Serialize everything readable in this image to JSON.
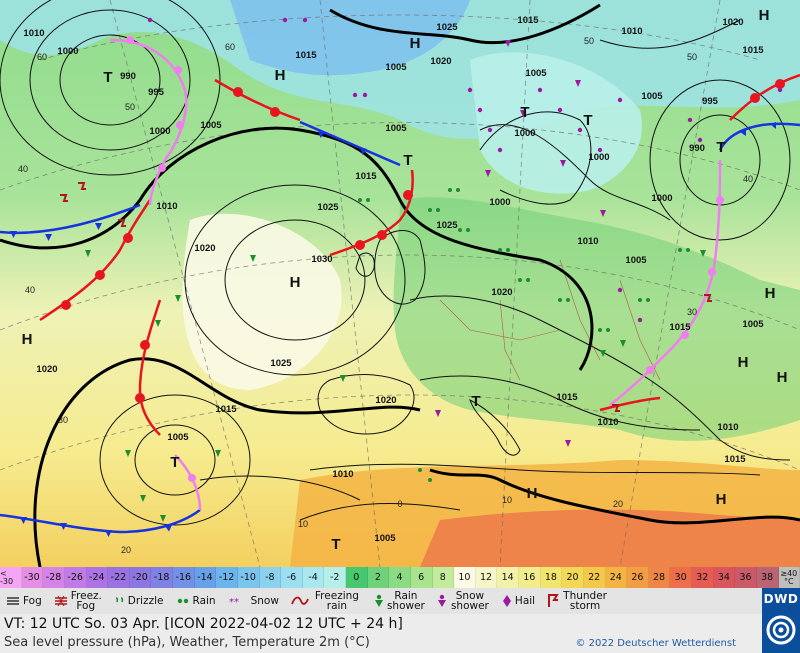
{
  "valid_time": "VT: 12 UTC So.  03 Apr. [ICON 2022-04-02  12 UTC + 24 h]",
  "description": "Sea level pressure (hPa), Weather, Temperature 2m (°C)",
  "copyright": "© 2022 Deutscher Wetterdienst",
  "logo": "DWD",
  "temperature_scale": {
    "low_end": "< -30",
    "high_end": "≥40 °C",
    "steps": [
      {
        "label": "-30",
        "color": "#e48fe4"
      },
      {
        "label": "-28",
        "color": "#d483e6"
      },
      {
        "label": "-26",
        "color": "#c07be6"
      },
      {
        "label": "-24",
        "color": "#ac73e4"
      },
      {
        "label": "-22",
        "color": "#9a72e2"
      },
      {
        "label": "-20",
        "color": "#8c76e0"
      },
      {
        "label": "-18",
        "color": "#7f82e2"
      },
      {
        "label": "-16",
        "color": "#7291e4"
      },
      {
        "label": "-14",
        "color": "#67a1e8"
      },
      {
        "label": "-12",
        "color": "#6cb4ec"
      },
      {
        "label": "-10",
        "color": "#7ac4ee"
      },
      {
        "label": "-8",
        "color": "#8ad2ee"
      },
      {
        "label": "-6",
        "color": "#9bdff0"
      },
      {
        "label": "-4",
        "color": "#a8e8ee"
      },
      {
        "label": "-2",
        "color": "#b6efe9"
      },
      {
        "label": "0",
        "color": "#47c86e"
      },
      {
        "label": "2",
        "color": "#6fd27a"
      },
      {
        "label": "4",
        "color": "#8cdb83"
      },
      {
        "label": "6",
        "color": "#a8e38e"
      },
      {
        "label": "8",
        "color": "#c3eb9b"
      },
      {
        "label": "10",
        "color": "#fafae6"
      },
      {
        "label": "12",
        "color": "#f6f6c8"
      },
      {
        "label": "14",
        "color": "#f3f2aa"
      },
      {
        "label": "16",
        "color": "#f1ec8c"
      },
      {
        "label": "18",
        "color": "#f2e56e"
      },
      {
        "label": "20",
        "color": "#f3d856"
      },
      {
        "label": "22",
        "color": "#f4c84a"
      },
      {
        "label": "24",
        "color": "#f3b444"
      },
      {
        "label": "26",
        "color": "#f29e44"
      },
      {
        "label": "28",
        "color": "#ef8646"
      },
      {
        "label": "30",
        "color": "#ec6e4b"
      },
      {
        "label": "32",
        "color": "#e45c52"
      },
      {
        "label": "34",
        "color": "#d9575c"
      },
      {
        "label": "36",
        "color": "#cb5a68"
      },
      {
        "label": "38",
        "color": "#bb6474"
      }
    ]
  },
  "legend": [
    {
      "id": "fog",
      "label": "Fog",
      "icon": "fog-icon"
    },
    {
      "id": "freezing-fog",
      "label": "Freez. Fog",
      "icon": "freezing-fog-icon"
    },
    {
      "id": "drizzle",
      "label": "Drizzle",
      "icon": "drizzle-icon"
    },
    {
      "id": "rain",
      "label": "Rain",
      "icon": "rain-icon"
    },
    {
      "id": "snow",
      "label": "Snow",
      "icon": "snow-icon"
    },
    {
      "id": "freezing-rain",
      "label": "Freezing rain",
      "icon": "freezing-rain-icon"
    },
    {
      "id": "rain-shower",
      "label": "Rain shower",
      "icon": "rain-shower-icon"
    },
    {
      "id": "snow-shower",
      "label": "Snow shower",
      "icon": "snow-shower-icon"
    },
    {
      "id": "hail",
      "label": "Hail",
      "icon": "hail-icon"
    },
    {
      "id": "thunderstorm",
      "label": "Thunder storm",
      "icon": "thunderstorm-icon"
    }
  ],
  "map": {
    "pressure_centers": [
      {
        "type": "H",
        "label": "H"
      },
      {
        "type": "H",
        "label": "H"
      },
      {
        "type": "H",
        "label": "H"
      },
      {
        "type": "H",
        "label": "H"
      },
      {
        "type": "H",
        "label": "H"
      },
      {
        "type": "H",
        "label": "H"
      },
      {
        "type": "H",
        "label": "H"
      },
      {
        "type": "H",
        "label": "H"
      },
      {
        "type": "H",
        "label": "H"
      },
      {
        "type": "H",
        "label": "H"
      },
      {
        "type": "T",
        "label": "T"
      },
      {
        "type": "T",
        "label": "T"
      },
      {
        "type": "T",
        "label": "T"
      },
      {
        "type": "T",
        "label": "T"
      },
      {
        "type": "T",
        "label": "T"
      },
      {
        "type": "T",
        "label": "T"
      },
      {
        "type": "T",
        "label": "T"
      },
      {
        "type": "T",
        "label": "T"
      }
    ],
    "isobar_labels": [
      "1010",
      "1000",
      "990",
      "995",
      "1000",
      "1005",
      "1010",
      "1020",
      "1025",
      "1030",
      "1015",
      "1025",
      "1020",
      "1015",
      "1005",
      "1000",
      "1000",
      "1005",
      "1010",
      "1015",
      "1020",
      "1025",
      "1015",
      "1005",
      "990",
      "995",
      "1000",
      "1005",
      "1010",
      "1010",
      "1015",
      "1020",
      "1005",
      "1015",
      "1020",
      "1010",
      "1005",
      "1015",
      "1020",
      "1025",
      "1010",
      "1015",
      "1005",
      "1000",
      "1005"
    ],
    "temperature_labels": [
      "60",
      "50",
      "40",
      "40",
      "30",
      "20",
      "10",
      "0",
      "10",
      "20",
      "30",
      "40",
      "50",
      "50",
      "60"
    ]
  }
}
